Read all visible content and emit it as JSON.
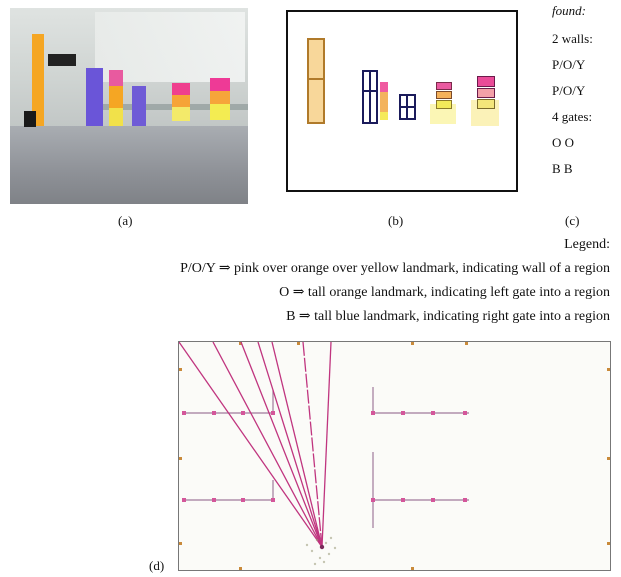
{
  "panels": {
    "a_label": "(a)",
    "b_label": "(b)",
    "c_label": "(c)",
    "d_label": "(d)"
  },
  "found_list": {
    "heading": "found:",
    "items": [
      "2 walls:",
      "P/O/Y",
      "P/O/Y",
      "4 gates:",
      "O O",
      "B B"
    ]
  },
  "legend": {
    "title": "Legend:",
    "entries": [
      "P/O/Y ⇒ pink over orange over yellow landmark, indicating wall of a region",
      "O ⇒ tall orange landmark, indicating left gate into a region",
      "B ⇒ tall blue landmark, indicating right gate into a region"
    ]
  },
  "colors": {
    "orange": "#f5a623",
    "blue": "#6a55d8",
    "pink": "#ec4b9b",
    "yellow": "#f2ea3a",
    "ray": "#c0357f",
    "wall_line": "#a07a9a",
    "outline_dark": "#1b1b3b"
  }
}
